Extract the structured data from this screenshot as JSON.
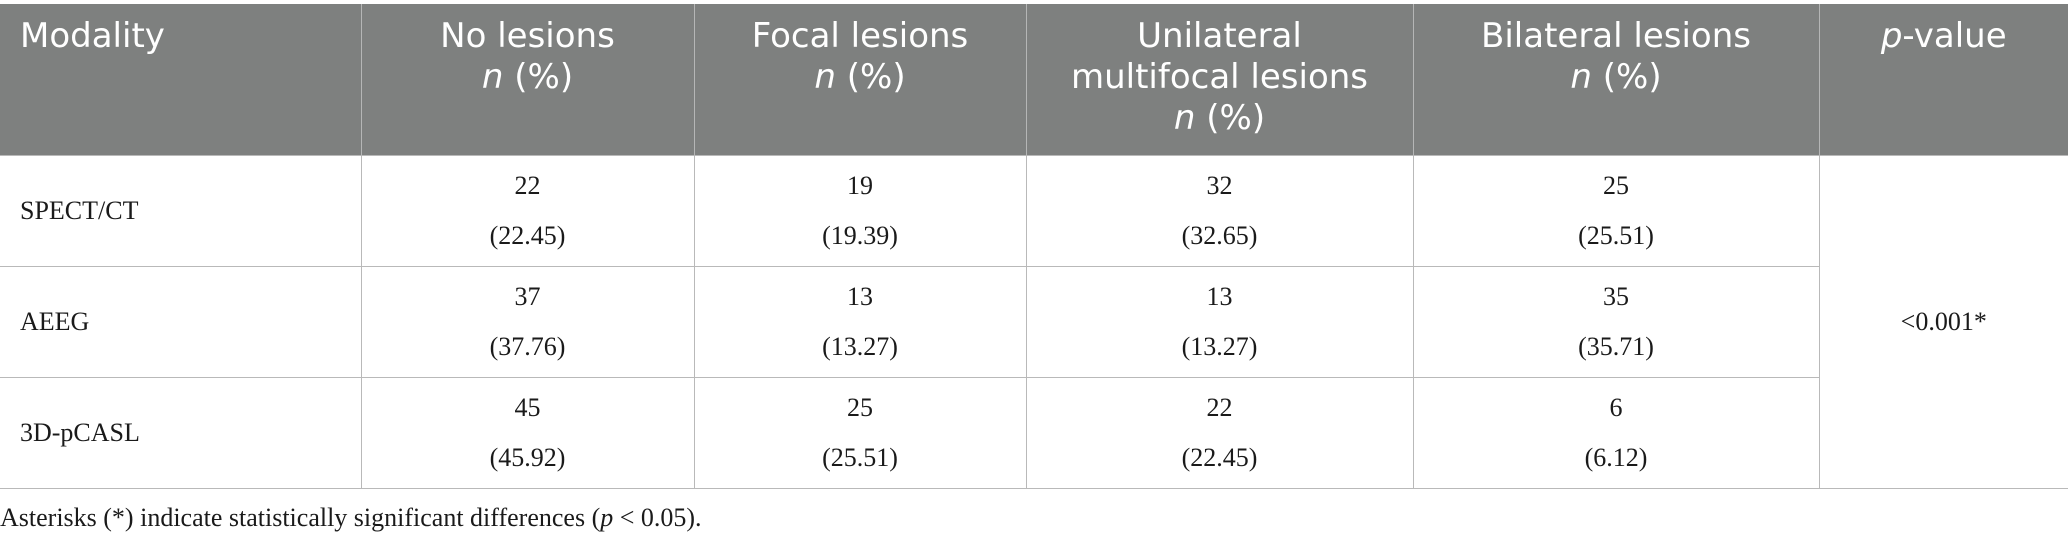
{
  "table": {
    "headers": {
      "modality": "Modality",
      "no_lesions": {
        "line1": "No lesions",
        "line2_italic": "n",
        "line2_rest": " (%)"
      },
      "focal_lesions": {
        "line1": "Focal lesions",
        "line2_italic": "n",
        "line2_rest": " (%)"
      },
      "unilateral": {
        "line1": "Unilateral",
        "line2": "multifocal lesions",
        "line3_italic": "n",
        "line3_rest": " (%)"
      },
      "bilateral_lesions": {
        "line1": "Bilateral lesions",
        "line2_italic": "n",
        "line2_rest": " (%)"
      },
      "p_value": {
        "italic": "p",
        "rest": "-value"
      }
    },
    "rows": [
      {
        "modality": "SPECT/CT",
        "no_lesions": {
          "n": "22",
          "pct": "(22.45)"
        },
        "focal_lesions": {
          "n": "19",
          "pct": "(19.39)"
        },
        "unilateral": {
          "n": "32",
          "pct": "(32.65)"
        },
        "bilateral_lesions": {
          "n": "25",
          "pct": "(25.51)"
        }
      },
      {
        "modality": "AEEG",
        "no_lesions": {
          "n": "37",
          "pct": "(37.76)"
        },
        "focal_lesions": {
          "n": "13",
          "pct": "(13.27)"
        },
        "unilateral": {
          "n": "13",
          "pct": "(13.27)"
        },
        "bilateral_lesions": {
          "n": "35",
          "pct": "(35.71)"
        }
      },
      {
        "modality": "3D-pCASL",
        "no_lesions": {
          "n": "45",
          "pct": "(45.92)"
        },
        "focal_lesions": {
          "n": "25",
          "pct": "(25.51)"
        },
        "unilateral": {
          "n": "22",
          "pct": "(22.45)"
        },
        "bilateral_lesions": {
          "n": "6",
          "pct": "(6.12)"
        }
      }
    ],
    "p_value": "<0.001*"
  },
  "footnote": {
    "before": "Asterisks (*) indicate statistically significant differences (",
    "italic": "p",
    "after": " < 0.05)."
  },
  "colors": {
    "header_bg": "#7e807f",
    "header_text": "#ffffff",
    "grid_line": "#b9b9b9"
  }
}
